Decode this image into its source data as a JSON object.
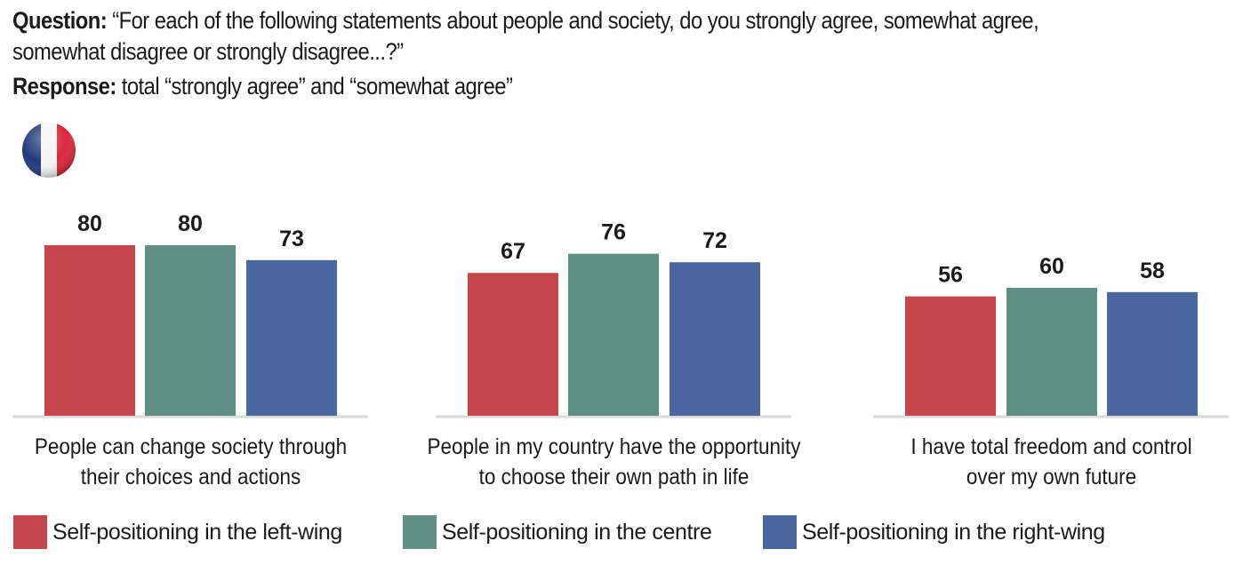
{
  "header": {
    "question_label": "Question:",
    "question_text_line1": "“For each of the following statements about people and society, do you strongly agree, somewhat agree,",
    "question_text_line2": "somewhat disagree or strongly disagree...?”",
    "response_label": "Response:",
    "response_text": "total “strongly agree” and “somewhat agree”"
  },
  "flag": {
    "country": "France",
    "icon": "france-flag-icon",
    "colors": [
      "#1f3a7a",
      "#ffffff",
      "#d9283a"
    ]
  },
  "chart_data": {
    "type": "bar",
    "title": "",
    "xlabel": "",
    "ylabel": "",
    "ylim": [
      0,
      100
    ],
    "grid": false,
    "legend_position": "bottom",
    "categories": [
      [
        "People can change society through",
        "their choices and actions"
      ],
      [
        "People in my country have the opportunity",
        "to choose their own path in life"
      ],
      [
        "I have total freedom and control",
        "over my own future"
      ]
    ],
    "series": [
      {
        "name": "Self-positioning in the left-wing",
        "color": "#c5474b",
        "values": [
          80,
          67,
          56
        ]
      },
      {
        "name": "Self-positioning in the centre",
        "color": "#628f84",
        "values": [
          80,
          76,
          60
        ]
      },
      {
        "name": "Self-positioning in the right-wing",
        "color": "#4a67a0",
        "values": [
          73,
          72,
          58
        ]
      }
    ]
  },
  "legend": [
    {
      "label": "Self-positioning in the left-wing",
      "color": "#c5474b"
    },
    {
      "label": "Self-positioning in the centre",
      "color": "#628f84"
    },
    {
      "label": "Self-positioning in the right-wing",
      "color": "#4a67a0"
    }
  ]
}
